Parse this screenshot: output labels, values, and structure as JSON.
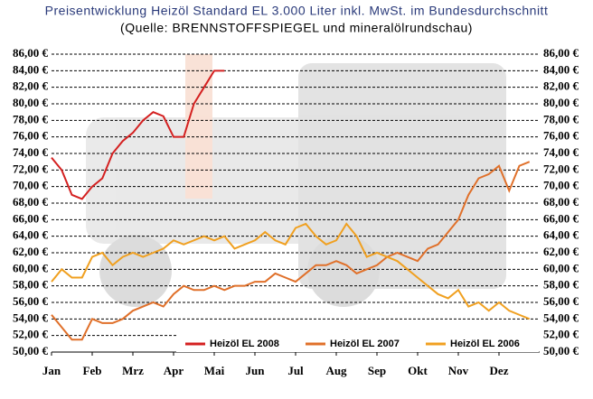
{
  "chart_data": {
    "type": "line",
    "title": "Preisentwicklung Heizöl Standard EL 3.000 Liter inkl. MwSt. im Bundesdurchschnitt",
    "subtitle": "(Quelle: BRENNSTOFFSPIEGEL und mineralölrundschau)",
    "x": [
      0,
      0.25,
      0.5,
      0.75,
      1,
      1.25,
      1.5,
      1.75,
      2,
      2.25,
      2.5,
      2.75,
      3,
      3.25,
      3.5,
      3.75,
      4,
      4.25,
      4.5,
      4.75,
      5,
      5.25,
      5.5,
      5.75,
      6,
      6.25,
      6.5,
      6.75,
      7,
      7.25,
      7.5,
      7.75,
      8,
      8.25,
      8.5,
      8.75,
      9,
      9.25,
      9.5,
      9.75,
      10,
      10.25,
      10.5,
      10.75,
      11,
      11.25,
      11.5,
      11.75,
      12
    ],
    "xlim": [
      0,
      12
    ],
    "xticks": [
      {
        "value": 0,
        "label": "Jan"
      },
      {
        "value": 1,
        "label": "Feb"
      },
      {
        "value": 2,
        "label": "Mrz"
      },
      {
        "value": 3,
        "label": "Apr"
      },
      {
        "value": 4,
        "label": "Mai"
      },
      {
        "value": 5,
        "label": "Jun"
      },
      {
        "value": 6,
        "label": "Jul"
      },
      {
        "value": 7,
        "label": "Aug"
      },
      {
        "value": 8,
        "label": "Sep"
      },
      {
        "value": 9,
        "label": "Okt"
      },
      {
        "value": 10,
        "label": "Nov"
      },
      {
        "value": 11,
        "label": "Dez"
      }
    ],
    "ylim": [
      50,
      86
    ],
    "yticks": [
      {
        "value": 50,
        "label": "50,00 €"
      },
      {
        "value": 52,
        "label": "52,00 €"
      },
      {
        "value": 54,
        "label": "54,00 €"
      },
      {
        "value": 56,
        "label": "56,00 €"
      },
      {
        "value": 58,
        "label": "58,00 €"
      },
      {
        "value": 60,
        "label": "60,00 €"
      },
      {
        "value": 62,
        "label": "62,00 €"
      },
      {
        "value": 64,
        "label": "64,00 €"
      },
      {
        "value": 66,
        "label": "66,00 €"
      },
      {
        "value": 68,
        "label": "68,00 €"
      },
      {
        "value": 70,
        "label": "70,00 €"
      },
      {
        "value": 72,
        "label": "72,00 €"
      },
      {
        "value": 74,
        "label": "74,00 €"
      },
      {
        "value": 76,
        "label": "76,00 €"
      },
      {
        "value": 78,
        "label": "78,00 €"
      },
      {
        "value": 80,
        "label": "80,00 €"
      },
      {
        "value": 82,
        "label": "82,00 €"
      },
      {
        "value": 84,
        "label": "84,00 €"
      },
      {
        "value": 86,
        "label": "86,00 €"
      }
    ],
    "y2lim": [
      50,
      86
    ],
    "y2ticks": [
      {
        "value": 50,
        "label": "50,00 €"
      },
      {
        "value": 52,
        "label": "52,00 €"
      },
      {
        "value": 54,
        "label": "54,00 €"
      },
      {
        "value": 56,
        "label": "56,00 €"
      },
      {
        "value": 58,
        "label": "58,00 €"
      },
      {
        "value": 60,
        "label": "60,00 €"
      },
      {
        "value": 62,
        "label": "62,00 €"
      },
      {
        "value": 64,
        "label": "64,00 €"
      },
      {
        "value": 66,
        "label": "66,00 €"
      },
      {
        "value": 68,
        "label": "68,00 €"
      },
      {
        "value": 70,
        "label": "70,00 €"
      },
      {
        "value": 72,
        "label": "72,00 €"
      },
      {
        "value": 74,
        "label": "74,00 €"
      },
      {
        "value": 76,
        "label": "76,00 €"
      },
      {
        "value": 78,
        "label": "78,00 €"
      },
      {
        "value": 80,
        "label": "80,00 €"
      },
      {
        "value": 82,
        "label": "82,00 €"
      },
      {
        "value": 84,
        "label": "84,00 €"
      },
      {
        "value": 86,
        "label": "86,00 €"
      }
    ],
    "grid": true,
    "legend": "bottom-right",
    "series": [
      {
        "name": "Heizöl EL 2008",
        "color": "#d42020",
        "values": [
          73.5,
          72,
          69,
          68.5,
          70,
          71,
          74,
          75.5,
          76.5,
          78,
          79,
          78.5,
          76,
          76,
          80,
          82,
          84,
          84,
          null,
          null,
          null,
          null,
          null,
          null,
          null,
          null,
          null,
          null,
          null,
          null,
          null,
          null,
          null,
          null,
          null,
          null,
          null,
          null,
          null,
          null,
          null,
          null,
          null,
          null,
          null,
          null,
          null,
          null,
          null
        ]
      },
      {
        "name": "Heizöl EL 2007",
        "color": "#e0702a",
        "values": [
          54.5,
          53,
          51.5,
          51.5,
          54,
          53.5,
          53.5,
          54,
          55,
          55.5,
          56,
          55.5,
          57,
          58,
          57.5,
          57.5,
          58,
          57.5,
          58,
          58,
          58.5,
          58.5,
          59.5,
          59,
          58.5,
          59.5,
          60.5,
          60.5,
          61,
          60.5,
          59.5,
          60,
          60.5,
          61.5,
          62,
          61.5,
          61,
          62.5,
          63,
          64.5,
          66,
          69,
          71,
          71.5,
          72.5,
          69.5,
          72.5,
          73,
          null
        ]
      },
      {
        "name": "Heizöl EL 2006",
        "color": "#f0a020",
        "values": [
          58.5,
          60,
          59,
          59,
          61.5,
          62,
          60.5,
          61.5,
          62,
          61.5,
          62,
          62.5,
          63.5,
          63,
          63.5,
          64,
          63.5,
          64,
          62.5,
          63,
          63.5,
          64.5,
          63.5,
          63,
          65,
          65.5,
          64,
          63,
          63.5,
          65.5,
          64,
          61.5,
          62,
          61.5,
          61,
          60,
          59,
          58,
          57,
          56.5,
          57.5,
          55.5,
          56,
          55,
          56,
          55,
          54.5,
          54,
          null
        ]
      }
    ]
  }
}
